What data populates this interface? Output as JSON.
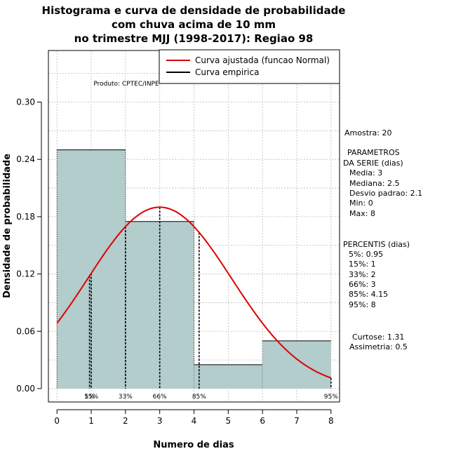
{
  "chart_data": {
    "type": "bar",
    "title_lines": [
      "Histograma e curva de densidade de probabilidade",
      "com chuva acima de 10 mm",
      "no trimestre MJJ (1998-2017): Regiao 98"
    ],
    "xlabel": "Numero de dias",
    "ylabel": "Densidade de probabilidade",
    "xlim": [
      -0.25,
      8.25
    ],
    "ylim": [
      -0.014,
      0.354
    ],
    "x_ticks": [
      0,
      1,
      2,
      3,
      4,
      5,
      6,
      7,
      8
    ],
    "y_ticks": [
      0.0,
      0.06,
      0.12,
      0.18,
      0.24,
      0.3
    ],
    "y_tick_labels": [
      "0.00",
      "0.06",
      "0.12",
      "0.18",
      "0.24",
      "0.30"
    ],
    "grid": true,
    "histogram": {
      "bin_edges": [
        0,
        2,
        4,
        6,
        8
      ],
      "density": [
        0.25,
        0.175,
        0.025,
        0.05
      ],
      "color": "#b3cccc"
    },
    "normal_curve": {
      "mean": 3,
      "sd": 2.1,
      "x_range": [
        0,
        8
      ],
      "color": "#dd0000"
    },
    "percentile_markers": [
      {
        "label": "5%",
        "x": 0.95
      },
      {
        "label": "15%",
        "x": 1
      },
      {
        "label": "33%",
        "x": 2
      },
      {
        "label": "66%",
        "x": 3
      },
      {
        "label": "85%",
        "x": 4.15
      },
      {
        "label": "95%",
        "x": 8
      }
    ],
    "legend": {
      "position": "top-right",
      "entries": [
        {
          "label": "Curva ajustada (funcao Normal)",
          "color": "#dd0000"
        },
        {
          "label": "Curva empirica",
          "color": "#000000"
        }
      ]
    },
    "annotation": "Produto: CPTEC/INPE"
  },
  "side_panel": {
    "amostra": "Amostra: 20",
    "param_lines": [
      "PARAMETROS",
      "DA SERIE (dias)",
      "Media: 3",
      "Mediana: 2.5",
      "Desvio padrao: 2.1",
      "Min: 0",
      "Max: 8"
    ],
    "percentis_lines": [
      "PERCENTIS (dias)",
      "5%: 0.95",
      "15%: 1",
      "33%: 2",
      "66%: 3",
      "85%: 4.15",
      "95%: 8"
    ],
    "curtose": "Curtose: 1.31",
    "assimetria": "Assimetria: 0.5"
  }
}
